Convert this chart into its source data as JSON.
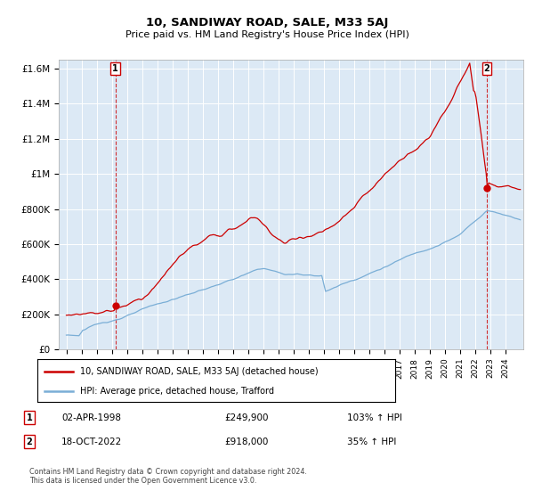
{
  "title": "10, SANDIWAY ROAD, SALE, M33 5AJ",
  "subtitle": "Price paid vs. HM Land Registry's House Price Index (HPI)",
  "xlim": [
    1994.5,
    2025.2
  ],
  "ylim": [
    0,
    1650000
  ],
  "yticks": [
    0,
    200000,
    400000,
    600000,
    800000,
    1000000,
    1200000,
    1400000,
    1600000
  ],
  "ytick_labels": [
    "£0",
    "£200K",
    "£400K",
    "£600K",
    "£800K",
    "£1M",
    "£1.2M",
    "£1.4M",
    "£1.6M"
  ],
  "xticks": [
    1995,
    1996,
    1997,
    1998,
    1999,
    2000,
    2001,
    2002,
    2003,
    2004,
    2005,
    2006,
    2007,
    2008,
    2009,
    2010,
    2011,
    2012,
    2013,
    2014,
    2015,
    2016,
    2017,
    2018,
    2019,
    2020,
    2021,
    2022,
    2023,
    2024
  ],
  "transaction_color": "#cc0000",
  "hpi_color": "#7aaed6",
  "transaction_label": "10, SANDIWAY ROAD, SALE, M33 5AJ (detached house)",
  "hpi_label": "HPI: Average price, detached house, Trafford",
  "point1_x": 1998.25,
  "point1_y": 249900,
  "point2_x": 2022.79,
  "point2_y": 918000,
  "point1_label": "1",
  "point2_label": "2",
  "annotation1_date": "02-APR-1998",
  "annotation1_price": "£249,900",
  "annotation1_hpi": "103% ↑ HPI",
  "annotation2_date": "18-OCT-2022",
  "annotation2_price": "£918,000",
  "annotation2_hpi": "35% ↑ HPI",
  "footnote": "Contains HM Land Registry data © Crown copyright and database right 2024.\nThis data is licensed under the Open Government Licence v3.0.",
  "plot_bg_color": "#dce9f5",
  "fig_bg_color": "#ffffff",
  "grid_color": "#ffffff"
}
